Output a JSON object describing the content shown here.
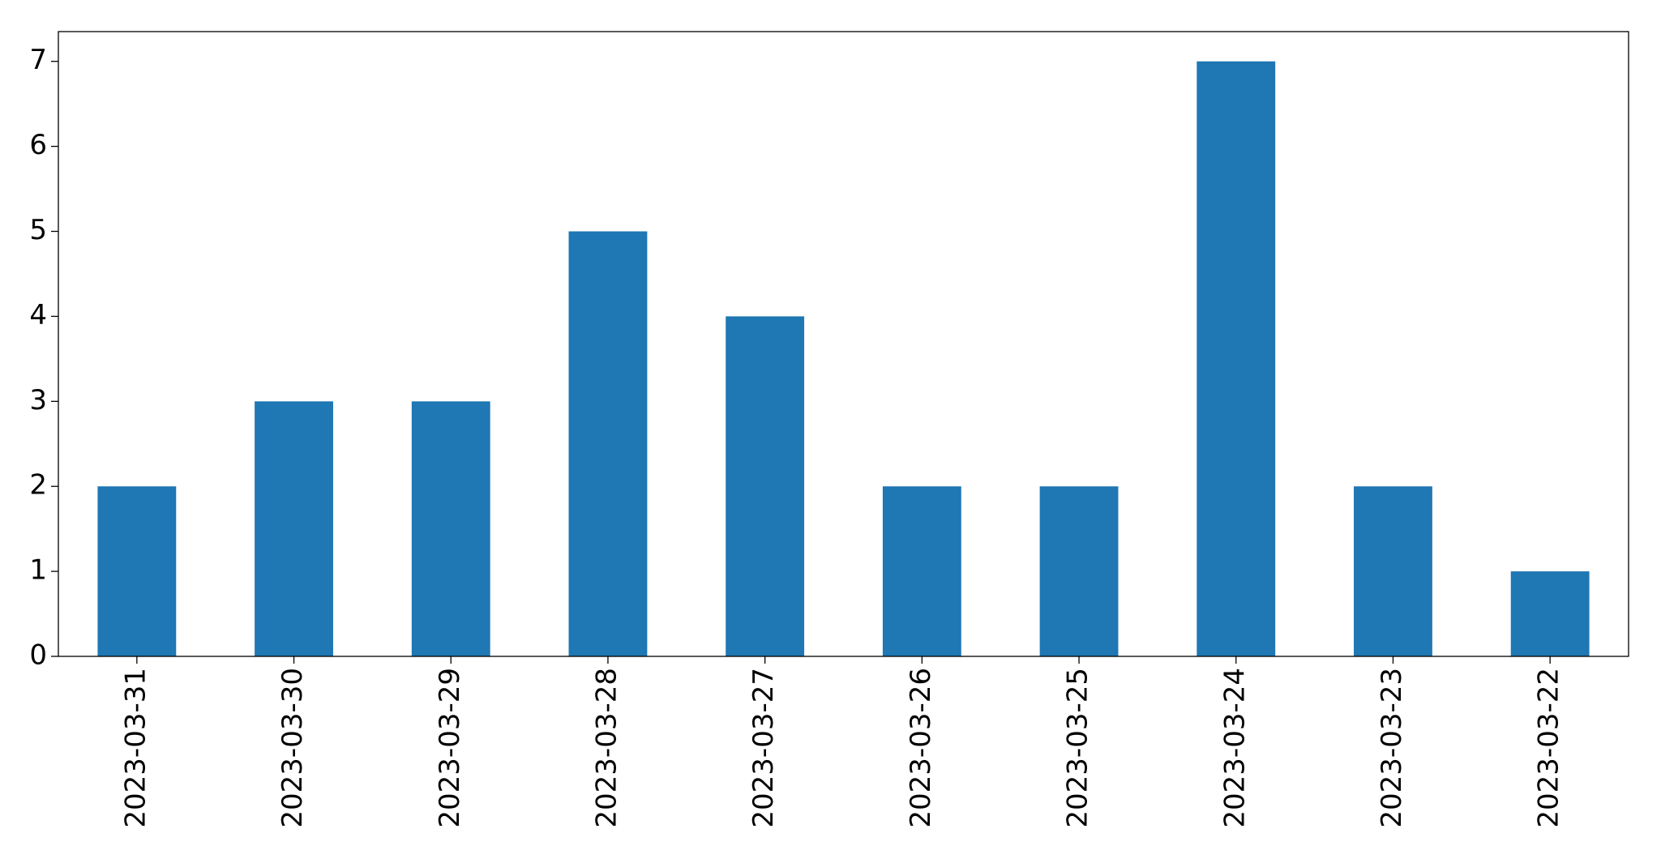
{
  "chart_data": {
    "type": "bar",
    "categories": [
      "2023-03-31",
      "2023-03-30",
      "2023-03-29",
      "2023-03-28",
      "2023-03-27",
      "2023-03-26",
      "2023-03-25",
      "2023-03-24",
      "2023-03-23",
      "2023-03-22"
    ],
    "values": [
      2,
      3,
      3,
      5,
      4,
      2,
      2,
      7,
      2,
      1
    ],
    "color": "#1f77b4",
    "ylim": [
      0,
      7.35
    ],
    "yticks": [
      0,
      1,
      2,
      3,
      4,
      5,
      6,
      7
    ],
    "grid": false
  }
}
